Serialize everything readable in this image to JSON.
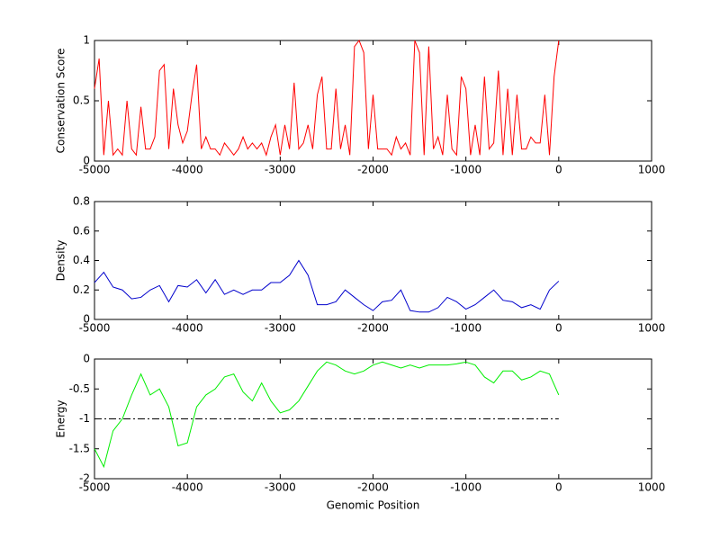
{
  "chart_data": [
    {
      "type": "line",
      "ylabel": "Conservation Score",
      "color": "#ff0000",
      "x": [
        -5000,
        -4950,
        -4900,
        -4850,
        -4800,
        -4750,
        -4700,
        -4650,
        -4600,
        -4550,
        -4500,
        -4450,
        -4400,
        -4350,
        -4300,
        -4250,
        -4200,
        -4150,
        -4100,
        -4050,
        -4000,
        -3950,
        -3900,
        -3850,
        -3800,
        -3750,
        -3700,
        -3650,
        -3600,
        -3550,
        -3500,
        -3450,
        -3400,
        -3350,
        -3300,
        -3250,
        -3200,
        -3150,
        -3100,
        -3050,
        -3000,
        -2950,
        -2900,
        -2850,
        -2800,
        -2750,
        -2700,
        -2650,
        -2600,
        -2550,
        -2500,
        -2450,
        -2400,
        -2350,
        -2300,
        -2250,
        -2200,
        -2150,
        -2100,
        -2050,
        -2000,
        -1950,
        -1900,
        -1850,
        -1800,
        -1750,
        -1700,
        -1650,
        -1600,
        -1550,
        -1500,
        -1450,
        -1400,
        -1350,
        -1300,
        -1250,
        -1200,
        -1150,
        -1100,
        -1050,
        -1000,
        -950,
        -900,
        -850,
        -800,
        -750,
        -700,
        -650,
        -600,
        -550,
        -500,
        -450,
        -400,
        -350,
        -300,
        -250,
        -200,
        -150,
        -100,
        -50,
        0
      ],
      "values": [
        0.6,
        0.85,
        0.05,
        0.5,
        0.05,
        0.1,
        0.05,
        0.5,
        0.1,
        0.05,
        0.45,
        0.1,
        0.1,
        0.2,
        0.75,
        0.8,
        0.1,
        0.6,
        0.3,
        0.15,
        0.25,
        0.55,
        0.8,
        0.1,
        0.2,
        0.1,
        0.1,
        0.05,
        0.15,
        0.1,
        0.05,
        0.1,
        0.2,
        0.1,
        0.15,
        0.1,
        0.15,
        0.05,
        0.2,
        0.3,
        0.05,
        0.3,
        0.1,
        0.65,
        0.1,
        0.15,
        0.3,
        0.1,
        0.55,
        0.7,
        0.1,
        0.1,
        0.6,
        0.1,
        0.3,
        0.05,
        0.95,
        1,
        0.9,
        0.1,
        0.55,
        0.1,
        0.1,
        0.1,
        0.05,
        0.2,
        0.1,
        0.15,
        0.05,
        1,
        0.9,
        0.05,
        0.95,
        0.1,
        0.2,
        0.05,
        0.55,
        0.1,
        0.05,
        0.7,
        0.6,
        0.05,
        0.3,
        0.05,
        0.7,
        0.1,
        0.15,
        0.75,
        0.05,
        0.6,
        0.05,
        0.55,
        0.1,
        0.1,
        0.2,
        0.15,
        0.15,
        0.55,
        0.05,
        0.7,
        1
      ],
      "xlim": [
        -5000,
        1000
      ],
      "xticks": [
        -5000,
        -4000,
        -3000,
        -2000,
        -1000,
        0,
        1000
      ],
      "ylim": [
        0,
        1
      ],
      "yticks": [
        0,
        0.5,
        1
      ]
    },
    {
      "type": "line",
      "ylabel": "Density",
      "color": "#0000cc",
      "x": [
        -5000,
        -4900,
        -4800,
        -4700,
        -4600,
        -4500,
        -4400,
        -4300,
        -4200,
        -4100,
        -4000,
        -3900,
        -3800,
        -3700,
        -3600,
        -3500,
        -3400,
        -3300,
        -3200,
        -3100,
        -3000,
        -2900,
        -2800,
        -2700,
        -2600,
        -2500,
        -2400,
        -2300,
        -2200,
        -2100,
        -2000,
        -1900,
        -1800,
        -1700,
        -1600,
        -1500,
        -1400,
        -1300,
        -1200,
        -1100,
        -1000,
        -900,
        -800,
        -700,
        -600,
        -500,
        -400,
        -300,
        -200,
        -100,
        0
      ],
      "values": [
        0.25,
        0.32,
        0.22,
        0.2,
        0.14,
        0.15,
        0.2,
        0.23,
        0.12,
        0.23,
        0.22,
        0.27,
        0.18,
        0.27,
        0.17,
        0.2,
        0.17,
        0.2,
        0.2,
        0.25,
        0.25,
        0.3,
        0.4,
        0.3,
        0.1,
        0.1,
        0.12,
        0.2,
        0.15,
        0.1,
        0.06,
        0.12,
        0.13,
        0.2,
        0.06,
        0.05,
        0.05,
        0.08,
        0.15,
        0.12,
        0.07,
        0.1,
        0.15,
        0.2,
        0.13,
        0.12,
        0.08,
        0.1,
        0.07,
        0.2,
        0.26
      ],
      "xlim": [
        -5000,
        1000
      ],
      "xticks": [
        -5000,
        -4000,
        -3000,
        -2000,
        -1000,
        0,
        1000
      ],
      "ylim": [
        0,
        0.8
      ],
      "yticks": [
        0,
        0.2,
        0.4,
        0.6,
        0.8
      ]
    },
    {
      "type": "line",
      "ylabel": "Energy",
      "xlabel": "Genomic Position",
      "color": "#00ee00",
      "x": [
        -5000,
        -4900,
        -4800,
        -4700,
        -4600,
        -4500,
        -4400,
        -4300,
        -4200,
        -4100,
        -4000,
        -3900,
        -3800,
        -3700,
        -3600,
        -3500,
        -3400,
        -3300,
        -3200,
        -3100,
        -3000,
        -2900,
        -2800,
        -2700,
        -2600,
        -2500,
        -2400,
        -2300,
        -2200,
        -2100,
        -2000,
        -1900,
        -1800,
        -1700,
        -1600,
        -1500,
        -1400,
        -1300,
        -1200,
        -1100,
        -1000,
        -900,
        -800,
        -700,
        -600,
        -500,
        -400,
        -300,
        -200,
        -100,
        0
      ],
      "values": [
        -1.5,
        -1.8,
        -1.2,
        -1.0,
        -0.6,
        -0.25,
        -0.6,
        -0.5,
        -0.8,
        -1.45,
        -1.4,
        -0.8,
        -0.6,
        -0.5,
        -0.3,
        -0.25,
        -0.55,
        -0.7,
        -0.4,
        -0.7,
        -0.9,
        -0.85,
        -0.7,
        -0.45,
        -0.2,
        -0.05,
        -0.1,
        -0.2,
        -0.25,
        -0.2,
        -0.1,
        -0.05,
        -0.1,
        -0.15,
        -0.1,
        -0.15,
        -0.1,
        -0.1,
        -0.1,
        -0.08,
        -0.05,
        -0.1,
        -0.3,
        -0.4,
        -0.2,
        -0.2,
        -0.35,
        -0.3,
        -0.2,
        -0.25,
        -0.6
      ],
      "reference_line": {
        "value": -1,
        "x": [
          -5000,
          0
        ],
        "color": "#000000",
        "style": "dash-dot"
      },
      "xlim": [
        -5000,
        1000
      ],
      "xticks": [
        -5000,
        -4000,
        -3000,
        -2000,
        -1000,
        0,
        1000
      ],
      "ylim": [
        -2,
        0
      ],
      "yticks": [
        -2,
        -1.5,
        -1,
        -0.5,
        0
      ]
    }
  ]
}
